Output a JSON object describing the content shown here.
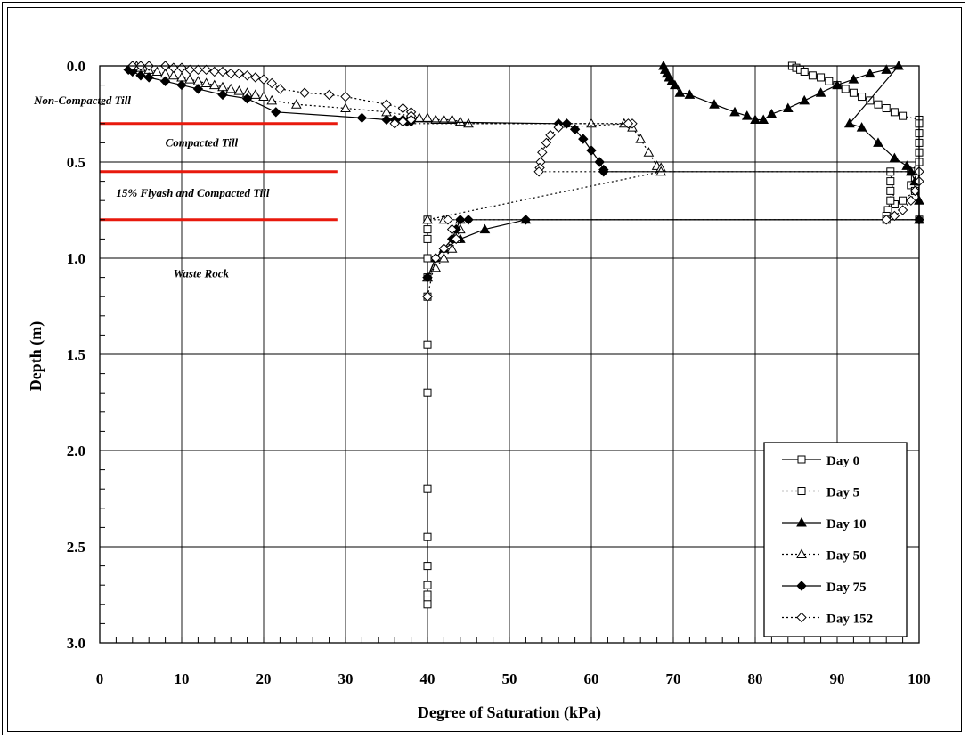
{
  "chart_data": {
    "type": "line",
    "title": "",
    "xlabel": "Degree of Saturation (kPa)",
    "ylabel": "Depth (m)",
    "xlim": [
      0,
      100
    ],
    "ylim": [
      0,
      3.0
    ],
    "y_inverted": true,
    "grid": true,
    "legend_position": "bottom-right",
    "x_ticks": [
      "0",
      "10",
      "20",
      "30",
      "40",
      "50",
      "60",
      "70",
      "80",
      "90",
      "100"
    ],
    "y_ticks": [
      "0.0",
      "0.5",
      "1.0",
      "1.5",
      "2.0",
      "2.5",
      "3.0"
    ],
    "layer_boundaries_m": [
      0.3,
      0.55,
      0.8
    ],
    "layer_boundary_color": "#e8190d",
    "annotations": [
      {
        "text": "Non-Compacted Till",
        "x": 0,
        "y": 0.2
      },
      {
        "text": "Compacted Till",
        "x": 8,
        "y": 0.42
      },
      {
        "text": "15% Flyash and Compacted Till",
        "x": 2,
        "y": 0.68
      },
      {
        "text": "Waste Rock",
        "x": 9,
        "y": 1.1
      }
    ],
    "series": [
      {
        "name": "Day 0",
        "marker": "square",
        "line": "solid",
        "x": [
          40,
          40,
          40,
          40,
          40,
          40,
          40,
          40,
          40,
          40,
          40,
          40,
          40,
          40,
          40
        ],
        "y": [
          0.8,
          0.85,
          0.9,
          1.0,
          1.1,
          1.2,
          1.45,
          1.7,
          2.2,
          2.45,
          2.6,
          2.7,
          2.75,
          2.78,
          2.8
        ]
      },
      {
        "name": "Day 5",
        "marker": "square",
        "line": "dotted",
        "x": [
          84.5,
          85,
          85.5,
          86,
          87,
          88,
          89,
          90,
          91,
          92,
          93,
          94,
          95,
          96,
          97,
          98,
          100,
          100,
          100,
          100,
          100,
          100,
          99,
          99.5,
          99,
          99.5,
          98,
          97,
          96.5,
          96.5,
          96.5,
          96.5,
          96.2,
          96,
          96,
          100
        ],
        "y": [
          0.0,
          0.01,
          0.02,
          0.03,
          0.05,
          0.06,
          0.08,
          0.1,
          0.12,
          0.14,
          0.16,
          0.18,
          0.2,
          0.22,
          0.24,
          0.26,
          0.28,
          0.3,
          0.35,
          0.4,
          0.45,
          0.5,
          0.55,
          0.58,
          0.62,
          0.65,
          0.7,
          0.72,
          0.55,
          0.6,
          0.65,
          0.7,
          0.75,
          0.78,
          0.8,
          0.8
        ]
      },
      {
        "name": "Day 10",
        "marker": "triangle",
        "line": "solid",
        "x": [
          68.8,
          69,
          69.2,
          69.5,
          69.8,
          70.2,
          70.8,
          72,
          75,
          77.5,
          79,
          80,
          81,
          82,
          84,
          86,
          88,
          90,
          92,
          94,
          96,
          97.5,
          91.5,
          93,
          95,
          97,
          98.5,
          99,
          99.5,
          100,
          100,
          52,
          47,
          44,
          42,
          41,
          40
        ],
        "y": [
          0.0,
          0.02,
          0.04,
          0.06,
          0.08,
          0.1,
          0.14,
          0.15,
          0.2,
          0.24,
          0.26,
          0.28,
          0.28,
          0.25,
          0.22,
          0.18,
          0.14,
          0.1,
          0.07,
          0.04,
          0.02,
          0.0,
          0.3,
          0.32,
          0.4,
          0.48,
          0.52,
          0.55,
          0.6,
          0.7,
          0.8,
          0.8,
          0.85,
          0.9,
          0.95,
          1.0,
          1.1
        ]
      },
      {
        "name": "Day 50",
        "marker": "triangle",
        "line": "dotted",
        "x": [
          4.5,
          5,
          6,
          7,
          8,
          9,
          10,
          11,
          12,
          13,
          14,
          15,
          16,
          17,
          18,
          19,
          20,
          21,
          24,
          30,
          35,
          38,
          39,
          40,
          41,
          42,
          43,
          44,
          45,
          60,
          64,
          65,
          66,
          67,
          68,
          68.5,
          68.5,
          40,
          42,
          44,
          44,
          43.5,
          43,
          42,
          41,
          40
        ],
        "y": [
          0.0,
          0.01,
          0.02,
          0.03,
          0.04,
          0.05,
          0.06,
          0.07,
          0.08,
          0.09,
          0.1,
          0.11,
          0.12,
          0.13,
          0.14,
          0.15,
          0.16,
          0.18,
          0.2,
          0.22,
          0.24,
          0.26,
          0.27,
          0.27,
          0.28,
          0.28,
          0.28,
          0.29,
          0.3,
          0.3,
          0.3,
          0.32,
          0.38,
          0.45,
          0.52,
          0.53,
          0.55,
          0.8,
          0.8,
          0.8,
          0.85,
          0.9,
          0.95,
          1.0,
          1.05,
          1.1
        ]
      },
      {
        "name": "Day 75",
        "marker": "diamond-filled",
        "line": "solid",
        "x": [
          3.5,
          4,
          5,
          6,
          8,
          10,
          12,
          15,
          18,
          21.5,
          32,
          35,
          36,
          37,
          37.5,
          38,
          56,
          57,
          58,
          59,
          60,
          61,
          61.5,
          61.5,
          100,
          100,
          52,
          45,
          44,
          43.5,
          43,
          42,
          41,
          40
        ],
        "y": [
          0.02,
          0.03,
          0.05,
          0.06,
          0.08,
          0.1,
          0.12,
          0.15,
          0.17,
          0.24,
          0.27,
          0.28,
          0.28,
          0.28,
          0.29,
          0.29,
          0.3,
          0.3,
          0.33,
          0.38,
          0.44,
          0.5,
          0.54,
          0.55,
          0.55,
          0.8,
          0.8,
          0.8,
          0.8,
          0.85,
          0.9,
          0.95,
          1.0,
          1.1
        ]
      },
      {
        "name": "Day 152",
        "marker": "diamond",
        "line": "dotted",
        "x": [
          4,
          5,
          6,
          8,
          9,
          10,
          11,
          12,
          13,
          14,
          15,
          16,
          17,
          18,
          19,
          20,
          21,
          22,
          25,
          28,
          30,
          35,
          37,
          38,
          38,
          38,
          37,
          36,
          65,
          64.5,
          56,
          55,
          54.5,
          54,
          53.8,
          53.7,
          53.6,
          100,
          100,
          99.5,
          99,
          98,
          97,
          96,
          42.5,
          43,
          43.5,
          42,
          41,
          40
        ],
        "y": [
          0.0,
          0.0,
          0.0,
          0.0,
          0.01,
          0.01,
          0.02,
          0.02,
          0.02,
          0.03,
          0.03,
          0.04,
          0.04,
          0.05,
          0.06,
          0.07,
          0.09,
          0.12,
          0.14,
          0.15,
          0.16,
          0.2,
          0.22,
          0.24,
          0.26,
          0.28,
          0.29,
          0.3,
          0.3,
          0.3,
          0.32,
          0.36,
          0.4,
          0.45,
          0.5,
          0.53,
          0.55,
          0.55,
          0.6,
          0.65,
          0.7,
          0.75,
          0.78,
          0.8,
          0.8,
          0.85,
          0.9,
          0.95,
          1.0,
          1.2
        ]
      }
    ]
  }
}
